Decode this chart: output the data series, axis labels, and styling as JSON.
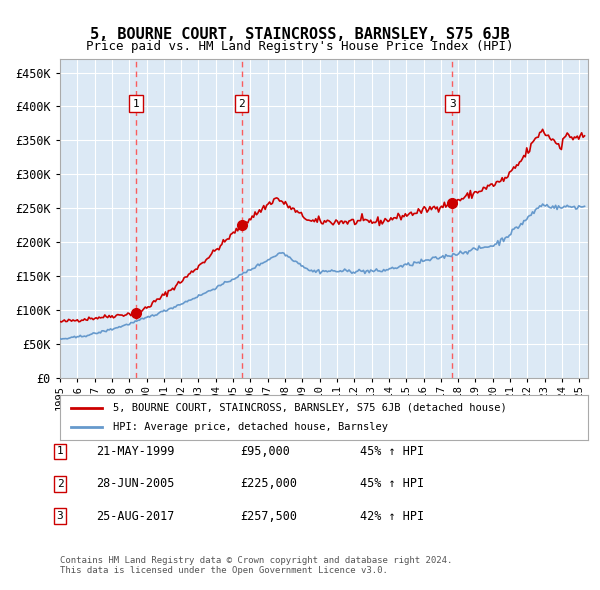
{
  "title": "5, BOURNE COURT, STAINCROSS, BARNSLEY, S75 6JB",
  "subtitle": "Price paid vs. HM Land Registry's House Price Index (HPI)",
  "background_color": "#ffffff",
  "plot_bg_color": "#dce9f5",
  "grid_color": "#ffffff",
  "ylim": [
    0,
    470000
  ],
  "yticks": [
    0,
    50000,
    100000,
    150000,
    200000,
    250000,
    300000,
    350000,
    400000,
    450000
  ],
  "ytick_labels": [
    "£0",
    "£50K",
    "£100K",
    "£150K",
    "£200K",
    "£250K",
    "£300K",
    "£350K",
    "£400K",
    "£450K"
  ],
  "xlim_start": 1995.0,
  "xlim_end": 2025.5,
  "purchases": [
    {
      "year": 1999.38,
      "price": 95000,
      "label": "1"
    },
    {
      "year": 2005.49,
      "price": 225000,
      "label": "2"
    },
    {
      "year": 2017.65,
      "price": 257500,
      "label": "3"
    }
  ],
  "legend_red_label": "5, BOURNE COURT, STAINCROSS, BARNSLEY, S75 6JB (detached house)",
  "legend_blue_label": "HPI: Average price, detached house, Barnsley",
  "table_rows": [
    {
      "num": "1",
      "date": "21-MAY-1999",
      "price": "£95,000",
      "hpi": "45% ↑ HPI"
    },
    {
      "num": "2",
      "date": "28-JUN-2005",
      "price": "£225,000",
      "hpi": "45% ↑ HPI"
    },
    {
      "num": "3",
      "date": "25-AUG-2017",
      "price": "£257,500",
      "hpi": "42% ↑ HPI"
    }
  ],
  "footer": "Contains HM Land Registry data © Crown copyright and database right 2024.\nThis data is licensed under the Open Government Licence v3.0.",
  "red_color": "#cc0000",
  "blue_color": "#6699cc",
  "dashed_color": "#ff4444"
}
